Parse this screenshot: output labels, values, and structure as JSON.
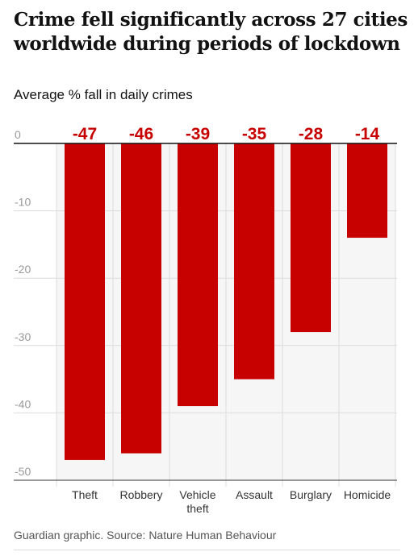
{
  "title": "Crime fell significantly across 27 cities worldwide during periods of lockdown",
  "subtitle": "Average % fall in daily crimes",
  "source": "Guardian graphic. Source: Nature Human Behaviour",
  "colors": {
    "bar": "#c70000",
    "label": "#c70000",
    "axis_text": "#999999",
    "grid": "#dcdcdc",
    "plot_bg": "#f6f6f6",
    "zero_line": "#121212"
  },
  "chart_data": {
    "type": "bar",
    "orientation": "vertical",
    "categories": [
      [
        "Theft"
      ],
      [
        "Robbery"
      ],
      [
        "Vehicle",
        "theft"
      ],
      [
        "Assault"
      ],
      [
        "Burglary"
      ],
      [
        "Homicide"
      ]
    ],
    "values": [
      -47,
      -46,
      -39,
      -35,
      -28,
      -14
    ],
    "data_labels": [
      "-47",
      "-46",
      "-39",
      "-35",
      "-28",
      "-14"
    ],
    "ylim": [
      -50,
      0
    ],
    "yticks": [
      0,
      -10,
      -20,
      -30,
      -40,
      -50
    ],
    "ytick_labels": [
      "0",
      "-10",
      "-20",
      "-30",
      "-40",
      "-50"
    ],
    "grid": true,
    "title": "Crime fell significantly across 27 cities worldwide during periods of lockdown",
    "ylabel": "Average % fall in daily crimes",
    "xlabel": ""
  }
}
